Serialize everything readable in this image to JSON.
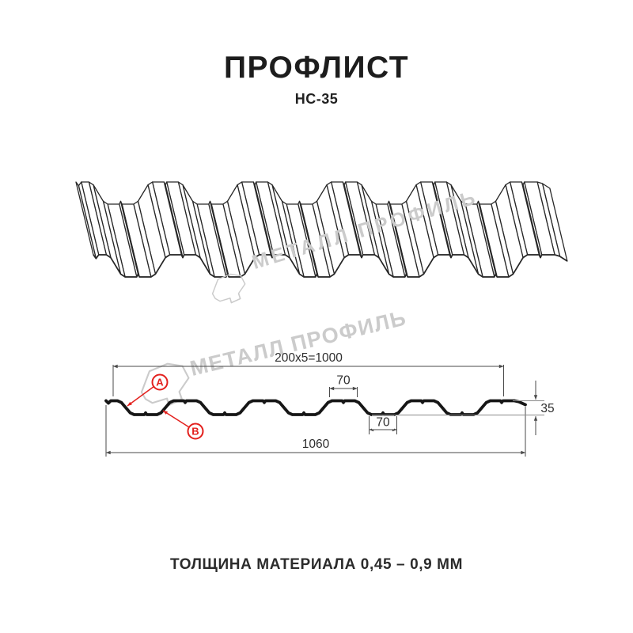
{
  "header": {
    "title": "ПРОФЛИСТ",
    "subtitle": "НС-35"
  },
  "watermark": {
    "text": "МЕТАЛЛ ПРОФИЛЬ"
  },
  "section": {
    "dims": {
      "width_top": "200x5=1000",
      "flange_top": "70",
      "flange_bottom": "70",
      "total_width": "1060",
      "height": "35"
    },
    "markers": {
      "a": "А",
      "b": "В"
    }
  },
  "footer": {
    "text": "ТОЛЩИНА МАТЕРИАЛА 0,45 – 0,9 ММ"
  },
  "colors": {
    "line_dark": "#161616",
    "iso_line": "#272727",
    "dim_line": "#4a4a4a",
    "dim_text": "#2e2e2e",
    "ref_line": "#8a8a8a",
    "accent_red": "#e3201d",
    "watermark": "#cbcbcb"
  }
}
